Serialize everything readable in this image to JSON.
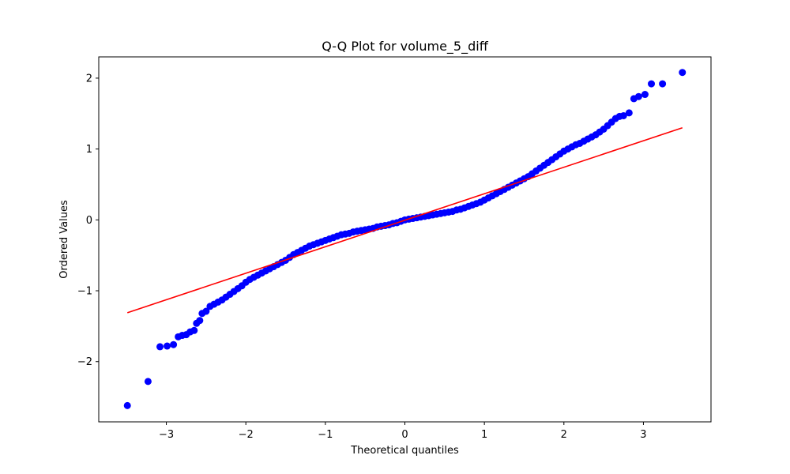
{
  "chart_data": {
    "type": "scatter",
    "title": "Q-Q Plot for volume_5_diff",
    "xlabel": "Theoretical quantiles",
    "ylabel": "Ordered Values",
    "xlim": [
      -3.85,
      3.85
    ],
    "ylim": [
      -2.85,
      2.3
    ],
    "x_ticks": [
      -3,
      -2,
      -1,
      0,
      1,
      2,
      3
    ],
    "y_ticks": [
      -2,
      -1,
      0,
      1,
      2
    ],
    "x_tick_labels": [
      "−3",
      "−2",
      "−1",
      "0",
      "1",
      "2",
      "3"
    ],
    "y_tick_labels": [
      "−2",
      "−1",
      "0",
      "1",
      "2"
    ],
    "grid": false,
    "series": [
      {
        "kind": "points",
        "color": "#0000ff",
        "points": [
          [
            -3.49,
            -2.62
          ],
          [
            -3.23,
            -2.28
          ],
          [
            -3.08,
            -1.79
          ],
          [
            -2.99,
            -1.78
          ],
          [
            -2.91,
            -1.76
          ],
          [
            -2.85,
            -1.65
          ],
          [
            -2.8,
            -1.63
          ],
          [
            -2.75,
            -1.62
          ],
          [
            -2.7,
            -1.58
          ],
          [
            -2.65,
            -1.56
          ],
          [
            -2.62,
            -1.46
          ],
          [
            -2.58,
            -1.42
          ],
          [
            -2.55,
            -1.32
          ],
          [
            -2.5,
            -1.29
          ],
          [
            -2.45,
            -1.22
          ],
          [
            -2.4,
            -1.19
          ],
          [
            -2.35,
            -1.16
          ],
          [
            -2.3,
            -1.13
          ],
          [
            -2.25,
            -1.09
          ],
          [
            -2.2,
            -1.05
          ],
          [
            -2.15,
            -1.01
          ],
          [
            -2.1,
            -0.97
          ],
          [
            -2.05,
            -0.93
          ],
          [
            -2.0,
            -0.88
          ],
          [
            -1.95,
            -0.84
          ],
          [
            -1.9,
            -0.81
          ],
          [
            -1.85,
            -0.78
          ],
          [
            -1.8,
            -0.75
          ],
          [
            -1.75,
            -0.72
          ],
          [
            -1.7,
            -0.69
          ],
          [
            -1.65,
            -0.66
          ],
          [
            -1.6,
            -0.63
          ],
          [
            -1.55,
            -0.6
          ],
          [
            -1.5,
            -0.57
          ],
          [
            -1.45,
            -0.53
          ],
          [
            -1.4,
            -0.49
          ],
          [
            -1.35,
            -0.46
          ],
          [
            -1.3,
            -0.43
          ],
          [
            -1.25,
            -0.4
          ],
          [
            -1.2,
            -0.37
          ],
          [
            -1.15,
            -0.35
          ],
          [
            -1.1,
            -0.33
          ],
          [
            -1.05,
            -0.31
          ],
          [
            -1.0,
            -0.29
          ],
          [
            -0.95,
            -0.27
          ],
          [
            -0.9,
            -0.25
          ],
          [
            -0.85,
            -0.23
          ],
          [
            -0.8,
            -0.21
          ],
          [
            -0.75,
            -0.2
          ],
          [
            -0.7,
            -0.19
          ],
          [
            -0.65,
            -0.17
          ],
          [
            -0.6,
            -0.16
          ],
          [
            -0.55,
            -0.15
          ],
          [
            -0.5,
            -0.14
          ],
          [
            -0.45,
            -0.13
          ],
          [
            -0.4,
            -0.12
          ],
          [
            -0.35,
            -0.1
          ],
          [
            -0.3,
            -0.09
          ],
          [
            -0.25,
            -0.08
          ],
          [
            -0.2,
            -0.07
          ],
          [
            -0.15,
            -0.05
          ],
          [
            -0.1,
            -0.04
          ],
          [
            -0.05,
            -0.02
          ],
          [
            0.0,
            0.0
          ],
          [
            0.05,
            0.01
          ],
          [
            0.1,
            0.02
          ],
          [
            0.15,
            0.03
          ],
          [
            0.2,
            0.04
          ],
          [
            0.25,
            0.05
          ],
          [
            0.3,
            0.06
          ],
          [
            0.35,
            0.07
          ],
          [
            0.4,
            0.08
          ],
          [
            0.45,
            0.09
          ],
          [
            0.5,
            0.1
          ],
          [
            0.55,
            0.11
          ],
          [
            0.6,
            0.12
          ],
          [
            0.65,
            0.14
          ],
          [
            0.7,
            0.15
          ],
          [
            0.75,
            0.17
          ],
          [
            0.8,
            0.19
          ],
          [
            0.85,
            0.21
          ],
          [
            0.9,
            0.23
          ],
          [
            0.95,
            0.25
          ],
          [
            1.0,
            0.28
          ],
          [
            1.05,
            0.31
          ],
          [
            1.1,
            0.34
          ],
          [
            1.15,
            0.37
          ],
          [
            1.2,
            0.4
          ],
          [
            1.25,
            0.43
          ],
          [
            1.3,
            0.46
          ],
          [
            1.35,
            0.49
          ],
          [
            1.4,
            0.52
          ],
          [
            1.45,
            0.55
          ],
          [
            1.5,
            0.58
          ],
          [
            1.55,
            0.61
          ],
          [
            1.6,
            0.65
          ],
          [
            1.65,
            0.69
          ],
          [
            1.7,
            0.73
          ],
          [
            1.75,
            0.77
          ],
          [
            1.8,
            0.81
          ],
          [
            1.85,
            0.85
          ],
          [
            1.9,
            0.89
          ],
          [
            1.95,
            0.93
          ],
          [
            2.0,
            0.97
          ],
          [
            2.05,
            1.0
          ],
          [
            2.1,
            1.03
          ],
          [
            2.15,
            1.06
          ],
          [
            2.2,
            1.08
          ],
          [
            2.25,
            1.11
          ],
          [
            2.3,
            1.14
          ],
          [
            2.35,
            1.17
          ],
          [
            2.4,
            1.2
          ],
          [
            2.45,
            1.24
          ],
          [
            2.5,
            1.28
          ],
          [
            2.55,
            1.33
          ],
          [
            2.6,
            1.38
          ],
          [
            2.65,
            1.43
          ],
          [
            2.7,
            1.46
          ],
          [
            2.75,
            1.47
          ],
          [
            2.82,
            1.51
          ],
          [
            2.88,
            1.71
          ],
          [
            2.94,
            1.74
          ],
          [
            3.02,
            1.77
          ],
          [
            3.1,
            1.92
          ],
          [
            3.24,
            1.92
          ],
          [
            3.49,
            2.08
          ]
        ]
      },
      {
        "kind": "line",
        "color": "#ff0000",
        "points": [
          [
            -3.49,
            -1.31
          ],
          [
            3.49,
            1.3
          ]
        ]
      }
    ]
  }
}
